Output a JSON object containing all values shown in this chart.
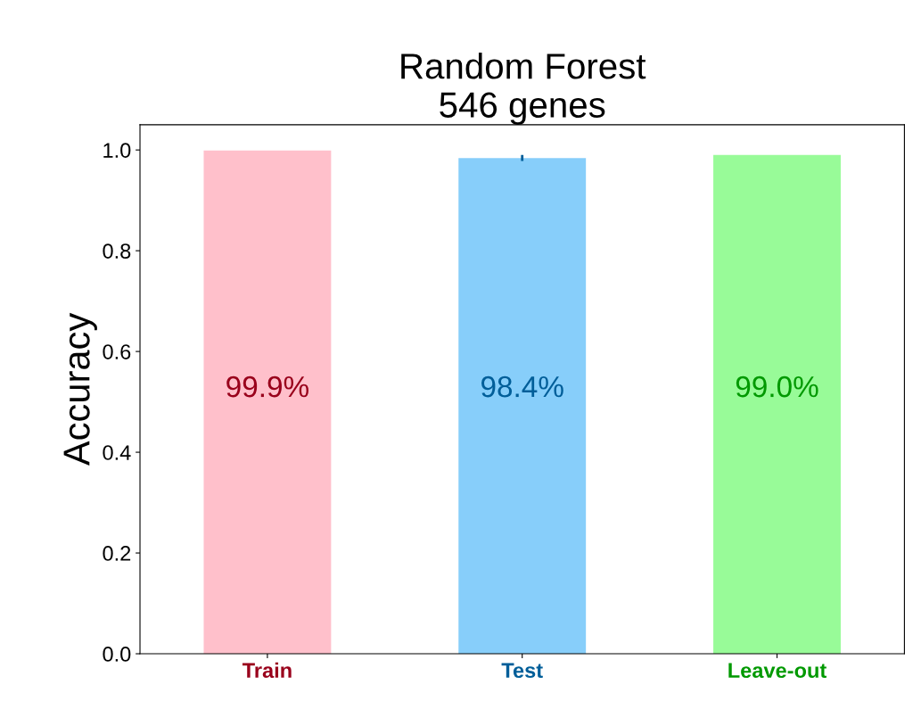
{
  "chart_data": {
    "type": "bar",
    "title": "Random Forest\n546 genes",
    "ylabel": "Accuracy",
    "categories": [
      "Train",
      "Test",
      "Leave-out"
    ],
    "values": [
      0.999,
      0.984,
      0.99
    ],
    "colors": [
      "#ffc0cb",
      "#87cefa",
      "#98fb98"
    ],
    "errors": [
      null,
      0.006,
      null
    ],
    "value_labels": [
      "99.9%",
      "98.4%",
      "99.0%"
    ],
    "ylim": [
      0,
      1.05
    ],
    "yticks": [
      {
        "value": 0,
        "label": "0.0"
      },
      0.2,
      0.4,
      0.6,
      0.8,
      {
        "value": 1,
        "label": "1.0"
      }
    ],
    "grid": false,
    "legend": false
  }
}
